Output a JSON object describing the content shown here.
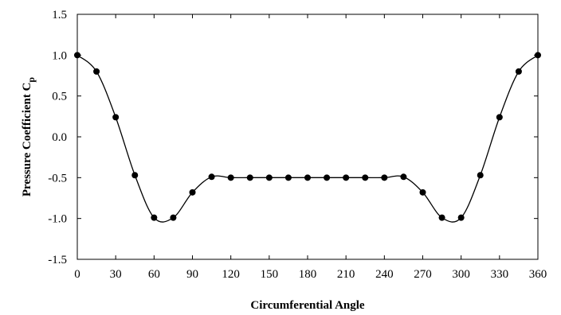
{
  "chart_data": {
    "type": "line",
    "title": "",
    "xlabel": "Circumferential Angle",
    "ylabel": "Pressure Coefficient C",
    "ylabel_subscript": "p",
    "xlim": [
      0,
      360
    ],
    "ylim": [
      -1.5,
      1.5
    ],
    "x_ticks": [
      0,
      30,
      60,
      90,
      120,
      150,
      180,
      210,
      240,
      270,
      300,
      330,
      360
    ],
    "y_ticks": [
      1.5,
      1.0,
      0.5,
      0.0,
      -0.5,
      -1.0,
      -1.5
    ],
    "x_tick_labels": [
      "0",
      "30",
      "60",
      "90",
      "120",
      "150",
      "180",
      "210",
      "240",
      "270",
      "300",
      "330",
      "360"
    ],
    "y_tick_labels": [
      "1.5",
      "1.0",
      "0.5",
      "0.0",
      "-0.5",
      "-1.0",
      "-1.5"
    ],
    "grid": false,
    "legend": "none",
    "colors": {
      "line": "#000000",
      "marker": "#000000"
    },
    "series": [
      {
        "x": [
          0,
          15,
          30,
          45,
          60,
          75,
          90,
          105,
          120,
          135,
          150,
          165,
          180,
          195,
          210,
          225,
          240,
          255,
          270,
          285,
          300,
          315,
          330,
          345,
          360
        ],
        "y": [
          1.0,
          0.8,
          0.24,
          -0.47,
          -0.99,
          -0.99,
          -0.68,
          -0.49,
          -0.5,
          -0.5,
          -0.5,
          -0.5,
          -0.5,
          -0.5,
          -0.5,
          -0.5,
          -0.5,
          -0.49,
          -0.68,
          -0.99,
          -0.99,
          -0.47,
          0.24,
          0.8,
          1.0
        ]
      }
    ]
  }
}
